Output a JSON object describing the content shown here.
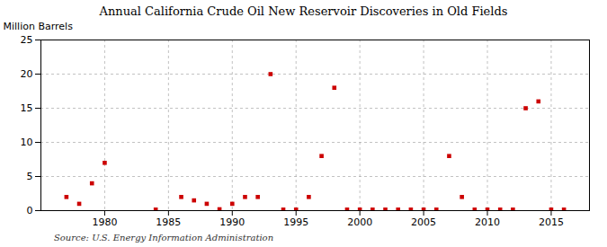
{
  "chart_data": {
    "type": "scatter",
    "title": "Annual California Crude Oil New Reservoir Discoveries in Old Fields",
    "ylabel": "Million Barrels",
    "source": "Source: U.S. Energy Information Administration",
    "color": "#cc0000",
    "marker": "square",
    "grid": true,
    "xlim": [
      1975,
      2018
    ],
    "ylim": [
      0,
      25
    ],
    "xticks": [
      1980,
      1985,
      1990,
      1995,
      2000,
      2005,
      2010,
      2015
    ],
    "yticks": [
      0,
      5,
      10,
      15,
      20,
      25
    ],
    "x": [
      1977,
      1978,
      1979,
      1980,
      1984,
      1986,
      1987,
      1988,
      1989,
      1990,
      1991,
      1992,
      1993,
      1994,
      1995,
      1996,
      1997,
      1998,
      1999,
      2000,
      2001,
      2002,
      2003,
      2004,
      2005,
      2006,
      2007,
      2008,
      2009,
      2010,
      2011,
      2012,
      2013,
      2014,
      2015,
      2016
    ],
    "values": [
      2.0,
      1.0,
      4.0,
      7.0,
      0.15,
      2.0,
      1.5,
      1.0,
      0.2,
      1.0,
      2.0,
      2.0,
      20.0,
      0.15,
      0.15,
      2.0,
      8.0,
      18.0,
      0.15,
      0.15,
      0.15,
      0.15,
      0.15,
      0.15,
      0.15,
      0.15,
      8.0,
      2.0,
      0.15,
      0.15,
      0.15,
      0.15,
      15.0,
      16.0,
      0.15,
      0.15
    ]
  }
}
